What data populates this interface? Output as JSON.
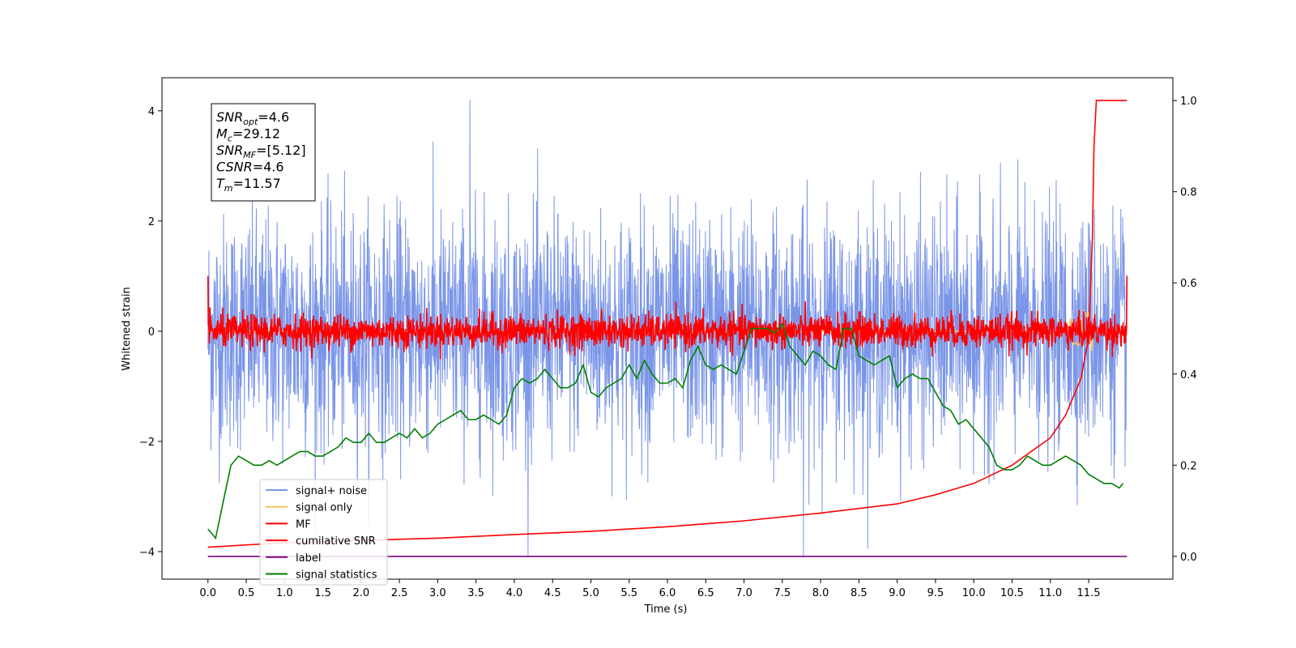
{
  "chart_data": {
    "type": "line",
    "xlabel": "Time (s)",
    "ylabel": "Whitened strain",
    "xlim": [
      -0.6,
      12.6
    ],
    "ylim": [
      -4.5,
      4.6
    ],
    "y2lim": [
      -0.05,
      1.05
    ],
    "x_ticks": [
      "0.0",
      "0.5",
      "1.0",
      "1.5",
      "2.0",
      "2.5",
      "3.0",
      "3.5",
      "4.0",
      "4.5",
      "5.0",
      "5.5",
      "6.0",
      "6.5",
      "7.0",
      "7.5",
      "8.0",
      "8.5",
      "9.0",
      "9.5",
      "10.0",
      "10.5",
      "11.0",
      "11.5"
    ],
    "y_ticks": [
      "4",
      "2",
      "0",
      "−2",
      "−4"
    ],
    "y2_ticks": [
      "1.0",
      "0.8",
      "0.6",
      "0.4",
      "0.2",
      "0.0"
    ],
    "info_box": [
      {
        "sym": "SNR",
        "sub": "opt",
        "val": "=4.6"
      },
      {
        "sym": "M",
        "sub": "c",
        "val": "=29.12"
      },
      {
        "sym": "SNR",
        "sub": "MF",
        "val": "=[5.12]"
      },
      {
        "sym": "CSNR",
        "sub": "",
        "val": "=4.6"
      },
      {
        "sym": "T",
        "sub": "m",
        "val": "=11.57"
      }
    ],
    "legend_position": "lower-left",
    "series": [
      {
        "name": "signal+ noise",
        "color": "#7b96e8",
        "axis": "left",
        "x_range": [
          0,
          12
        ],
        "amplitude_std": 1.0,
        "peak_max": 4.2,
        "peak_min": -4.1
      },
      {
        "name": "signal only",
        "color": "#f5c26b",
        "axis": "left",
        "x_range": [
          0,
          12
        ],
        "merger_time": 11.57,
        "peak_max": 1.0,
        "peak_min": -1.1
      },
      {
        "name": "MF",
        "color": "#ff0000",
        "axis": "left",
        "x_range": [
          0,
          12
        ],
        "amplitude_std": 0.15,
        "edge_value": 1.0
      },
      {
        "name": "cumilative SNR",
        "color": "#ff0000",
        "axis": "right",
        "x": [
          0.0,
          1.0,
          2.0,
          3.0,
          4.0,
          5.0,
          6.0,
          7.0,
          8.0,
          9.0,
          9.5,
          10.0,
          10.5,
          11.0,
          11.2,
          11.4,
          11.5,
          11.55,
          11.57,
          11.6,
          12.0
        ],
        "values": [
          0.02,
          0.03,
          0.035,
          0.04,
          0.048,
          0.055,
          0.065,
          0.078,
          0.095,
          0.115,
          0.135,
          0.16,
          0.2,
          0.26,
          0.31,
          0.39,
          0.48,
          0.7,
          0.9,
          1.0,
          1.0
        ]
      },
      {
        "name": "label",
        "color": "#800080",
        "axis": "right",
        "x": [
          0.0,
          12.0
        ],
        "values": [
          0.0,
          0.0
        ]
      },
      {
        "name": "signal statistics",
        "color": "#008000",
        "axis": "right",
        "x": [
          0.0,
          0.1,
          0.2,
          0.3,
          0.4,
          0.5,
          0.6,
          0.7,
          0.8,
          0.9,
          1.0,
          1.1,
          1.2,
          1.3,
          1.4,
          1.5,
          1.6,
          1.7,
          1.8,
          1.9,
          2.0,
          2.1,
          2.2,
          2.3,
          2.4,
          2.5,
          2.6,
          2.7,
          2.8,
          2.9,
          3.0,
          3.1,
          3.2,
          3.3,
          3.4,
          3.5,
          3.6,
          3.7,
          3.8,
          3.9,
          4.0,
          4.1,
          4.2,
          4.3,
          4.4,
          4.5,
          4.6,
          4.7,
          4.8,
          4.9,
          5.0,
          5.1,
          5.2,
          5.3,
          5.4,
          5.5,
          5.6,
          5.7,
          5.8,
          5.9,
          6.0,
          6.1,
          6.2,
          6.3,
          6.4,
          6.5,
          6.6,
          6.7,
          6.8,
          6.9,
          7.0,
          7.1,
          7.2,
          7.3,
          7.4,
          7.5,
          7.6,
          7.7,
          7.8,
          7.9,
          8.0,
          8.1,
          8.2,
          8.3,
          8.4,
          8.5,
          8.6,
          8.7,
          8.8,
          8.9,
          9.0,
          9.1,
          9.2,
          9.3,
          9.4,
          9.5,
          9.6,
          9.7,
          9.8,
          9.9,
          10.0,
          10.1,
          10.2,
          10.3,
          10.4,
          10.5,
          10.6,
          10.7,
          10.8,
          10.9,
          11.0,
          11.1,
          11.2,
          11.3,
          11.4,
          11.5,
          11.6,
          11.7,
          11.8,
          11.9,
          11.95
        ],
        "values": [
          0.06,
          0.04,
          0.12,
          0.2,
          0.22,
          0.21,
          0.2,
          0.2,
          0.21,
          0.2,
          0.21,
          0.22,
          0.23,
          0.23,
          0.22,
          0.22,
          0.23,
          0.24,
          0.26,
          0.25,
          0.25,
          0.27,
          0.25,
          0.25,
          0.26,
          0.27,
          0.26,
          0.28,
          0.26,
          0.27,
          0.29,
          0.3,
          0.31,
          0.32,
          0.3,
          0.3,
          0.31,
          0.3,
          0.29,
          0.31,
          0.37,
          0.39,
          0.38,
          0.39,
          0.41,
          0.39,
          0.37,
          0.37,
          0.38,
          0.42,
          0.36,
          0.35,
          0.37,
          0.38,
          0.39,
          0.42,
          0.39,
          0.43,
          0.4,
          0.38,
          0.38,
          0.39,
          0.37,
          0.43,
          0.46,
          0.42,
          0.41,
          0.42,
          0.41,
          0.4,
          0.45,
          0.5,
          0.5,
          0.5,
          0.49,
          0.51,
          0.46,
          0.44,
          0.42,
          0.45,
          0.44,
          0.42,
          0.41,
          0.5,
          0.5,
          0.44,
          0.43,
          0.42,
          0.43,
          0.44,
          0.37,
          0.39,
          0.4,
          0.39,
          0.39,
          0.36,
          0.33,
          0.32,
          0.29,
          0.3,
          0.28,
          0.26,
          0.24,
          0.2,
          0.19,
          0.19,
          0.2,
          0.22,
          0.21,
          0.2,
          0.2,
          0.21,
          0.22,
          0.21,
          0.2,
          0.18,
          0.17,
          0.16,
          0.16,
          0.15,
          0.16
        ]
      }
    ]
  }
}
